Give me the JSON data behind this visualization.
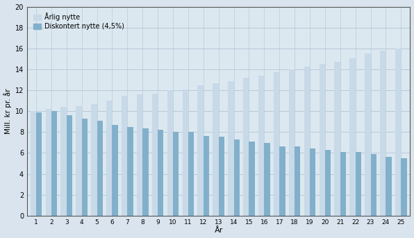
{
  "years": [
    1,
    2,
    3,
    4,
    5,
    6,
    7,
    8,
    9,
    10,
    11,
    12,
    13,
    14,
    15,
    16,
    17,
    18,
    19,
    20,
    21,
    22,
    23,
    24,
    25
  ],
  "arlig_nytte": [
    10.0,
    10.2,
    10.4,
    10.5,
    10.7,
    11.0,
    11.5,
    11.6,
    11.7,
    12.0,
    12.1,
    12.45,
    12.7,
    12.85,
    13.2,
    13.4,
    13.7,
    14.0,
    14.25,
    14.55,
    14.7,
    15.05,
    15.5,
    15.8,
    16.0
  ],
  "diskontert_nytte": [
    9.9,
    10.0,
    9.6,
    9.3,
    9.1,
    8.7,
    8.5,
    8.35,
    8.25,
    8.0,
    8.0,
    7.65,
    7.55,
    7.3,
    7.1,
    6.95,
    6.65,
    6.65,
    6.45,
    6.3,
    6.1,
    6.1,
    5.9,
    5.6,
    5.5
  ],
  "color_arlig": "#c8d9e8",
  "color_diskontert": "#82b0cb",
  "ylabel": "Mill. kr pr. år",
  "xlabel": "År",
  "ylim": [
    0,
    20
  ],
  "yticks": [
    0,
    2,
    4,
    6,
    8,
    10,
    12,
    14,
    16,
    18,
    20
  ],
  "legend_arlig": "Årlig nytte",
  "legend_diskontert": "Diskontert nytte (4,5%)",
  "background_color": "#d9e4ee",
  "plot_bg_color": "#dce8f0",
  "grid_color": "#b0c4d4",
  "spine_color": "#555555"
}
